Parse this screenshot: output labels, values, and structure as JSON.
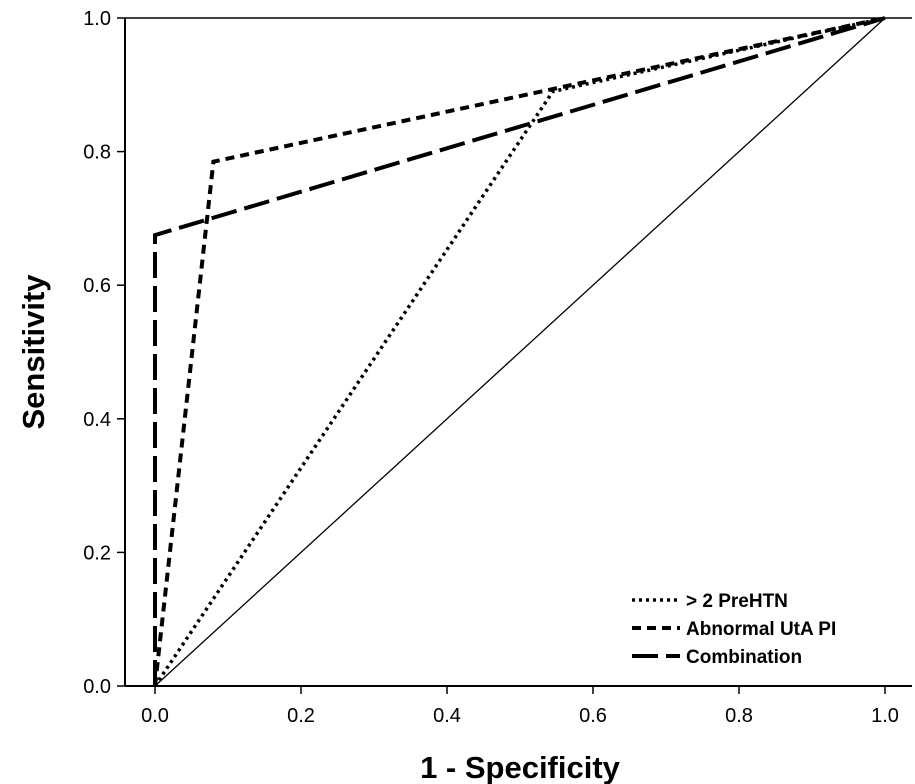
{
  "chart_data": {
    "type": "line",
    "title": "",
    "xlabel": "1 - Specificity",
    "ylabel": "Sensitivity",
    "xlim": [
      0.0,
      1.0
    ],
    "ylim": [
      0.0,
      1.0
    ],
    "xticks": [
      "0.0",
      "0.2",
      "0.4",
      "0.6",
      "0.8",
      "1.0"
    ],
    "yticks": [
      "0.0",
      "0.2",
      "0.4",
      "0.6",
      "0.8",
      "1.0"
    ],
    "grid": false,
    "legend_position": "bottom-right",
    "series": [
      {
        "name": "> 2 PreHTN",
        "style": "dotted",
        "x": [
          0.0,
          0.545,
          1.0
        ],
        "y": [
          0.0,
          0.89,
          1.0
        ]
      },
      {
        "name": "Abnormal UtA PI",
        "style": "dashed",
        "x": [
          0.0,
          0.08,
          1.0
        ],
        "y": [
          0.0,
          0.785,
          1.0
        ]
      },
      {
        "name": "Combination",
        "style": "longdash",
        "x": [
          0.0,
          0.0,
          1.0
        ],
        "y": [
          0.0,
          0.675,
          1.0
        ]
      }
    ],
    "reference_line": {
      "x": [
        0.0,
        1.0
      ],
      "y": [
        0.0,
        1.0
      ]
    }
  }
}
